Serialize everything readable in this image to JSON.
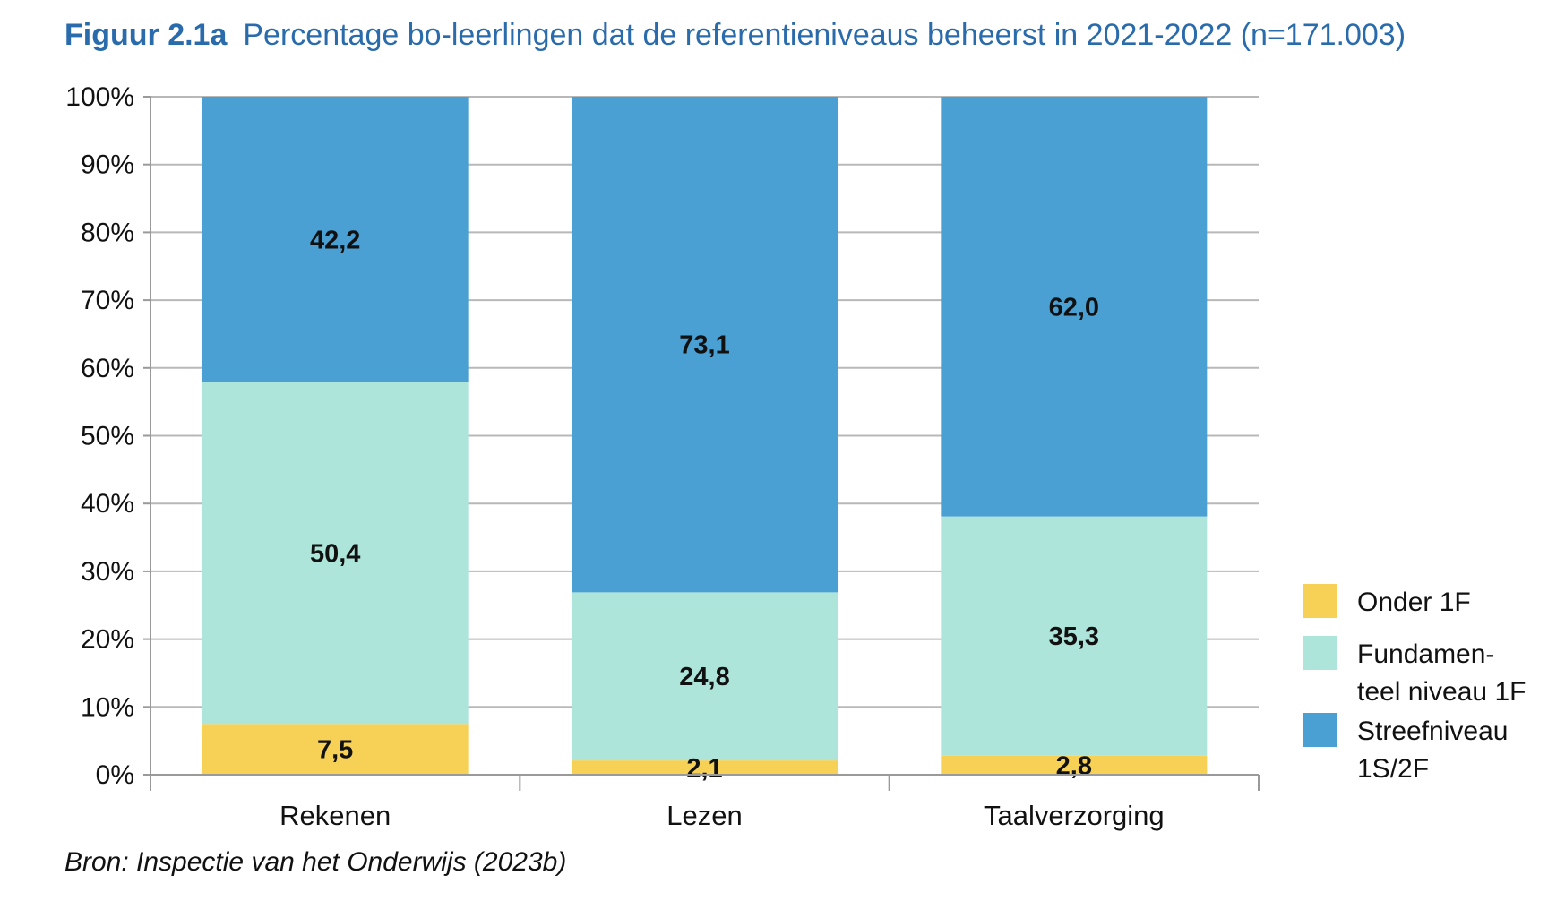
{
  "title": {
    "figure_label": "Figuur 2.1a",
    "text": "Percentage bo-leerlingen dat de referentieniveaus beheerst in 2021-2022 (n=171.003)"
  },
  "source": "Bron: Inspectie van het Onderwijs (2023b)",
  "chart_data": {
    "type": "bar",
    "stacked": true,
    "title": "Percentage bo-leerlingen dat de referentieniveaus beheerst in 2021-2022 (n=171.003)",
    "categories": [
      "Rekenen",
      "Lezen",
      "Taalverzorging"
    ],
    "series": [
      {
        "name": "Onder 1F",
        "color": "#f6d155",
        "values": [
          7.5,
          2.1,
          2.8
        ],
        "labels": [
          "7,5",
          "2,1",
          "2,8"
        ]
      },
      {
        "name": "Fundamen-teel niveau 1F",
        "legend_lines": [
          "Fundamen-",
          "teel niveau 1F"
        ],
        "color": "#aee5db",
        "values": [
          50.4,
          24.8,
          35.3
        ],
        "labels": [
          "50,4",
          "24,8",
          "35,3"
        ]
      },
      {
        "name": "Streefniveau 1S/2F",
        "legend_lines": [
          "Streefniveau",
          "1S/2F"
        ],
        "color": "#4aa0d2",
        "values": [
          42.2,
          73.1,
          62.0
        ],
        "labels": [
          "42,2",
          "73,1",
          "62,0"
        ]
      }
    ],
    "yticks": [
      "0%",
      "10%",
      "20%",
      "30%",
      "40%",
      "50%",
      "60%",
      "70%",
      "80%",
      "90%",
      "100%"
    ],
    "ylim": [
      0,
      100
    ],
    "xlabel": "",
    "ylabel": "",
    "grid": true,
    "legend": "right"
  }
}
